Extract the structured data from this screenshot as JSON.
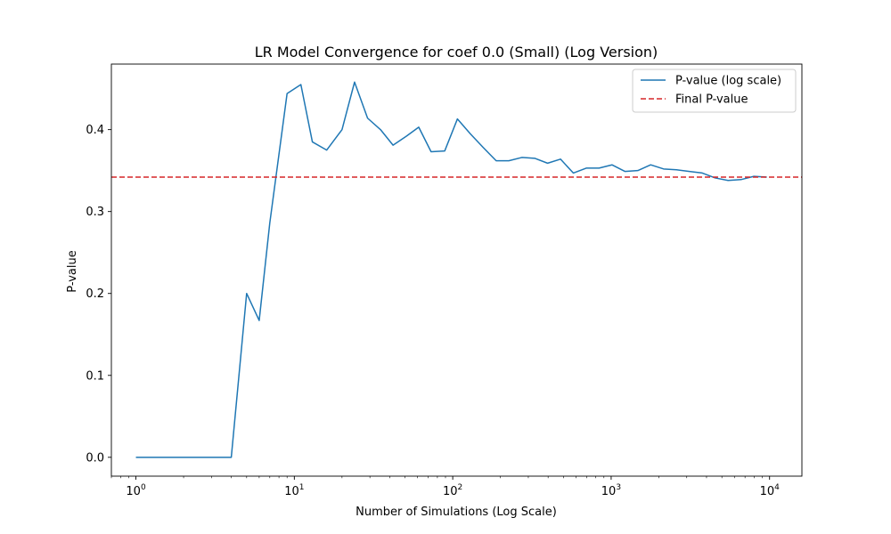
{
  "chart_data": {
    "type": "line",
    "title": "LR Model Convergence for coef 0.0 (Small) (Log Version)",
    "xlabel": "Number of Simulations (Log Scale)",
    "ylabel": "P-value",
    "x_scale": "log",
    "xlim": [
      0.7,
      16000
    ],
    "ylim": [
      -0.023,
      0.48
    ],
    "x_ticks": [
      {
        "value": 1,
        "base": "10",
        "exp": "0"
      },
      {
        "value": 10,
        "base": "10",
        "exp": "1"
      },
      {
        "value": 100,
        "base": "10",
        "exp": "2"
      },
      {
        "value": 1000,
        "base": "10",
        "exp": "3"
      },
      {
        "value": 10000,
        "base": "10",
        "exp": "4"
      }
    ],
    "y_ticks": [
      {
        "value": 0.0,
        "label": "0.0"
      },
      {
        "value": 0.1,
        "label": "0.1"
      },
      {
        "value": 0.2,
        "label": "0.2"
      },
      {
        "value": 0.3,
        "label": "0.3"
      },
      {
        "value": 0.4,
        "label": "0.4"
      }
    ],
    "grid": false,
    "legend_position": "top-right",
    "series": [
      {
        "name": "P-value (log scale)",
        "color": "#1f77b4",
        "style": "solid",
        "x": [
          1,
          2,
          3,
          4,
          5,
          6,
          7,
          9,
          11,
          13,
          16,
          20,
          24,
          29,
          35,
          42,
          51,
          61,
          73,
          89,
          107,
          129,
          156,
          188,
          226,
          273,
          329,
          397,
          479,
          577,
          696,
          839,
          1012,
          1221,
          1473,
          1776,
          2143,
          2585,
          3118,
          3761,
          4537,
          5473,
          6602,
          7964,
          9606
        ],
        "y": [
          0.0,
          0.0,
          0.0,
          0.0,
          0.2,
          0.167,
          0.286,
          0.444,
          0.455,
          0.385,
          0.375,
          0.4,
          0.458,
          0.414,
          0.4,
          0.381,
          0.392,
          0.403,
          0.373,
          0.374,
          0.413,
          0.395,
          0.378,
          0.362,
          0.362,
          0.366,
          0.365,
          0.359,
          0.364,
          0.347,
          0.353,
          0.353,
          0.357,
          0.349,
          0.35,
          0.357,
          0.352,
          0.351,
          0.349,
          0.347,
          0.341,
          0.338,
          0.339,
          0.343,
          0.342
        ]
      },
      {
        "name": "Final P-value",
        "color": "#d62728",
        "style": "dashed",
        "hline": 0.342
      }
    ]
  }
}
